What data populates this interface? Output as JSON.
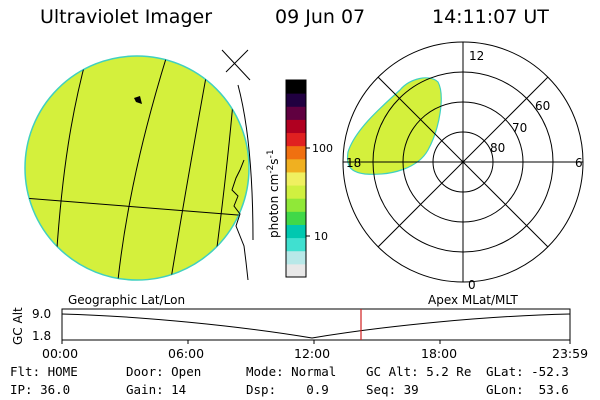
{
  "header": {
    "title": "Ultraviolet Imager",
    "date": "09 Jun 07",
    "time": "14:11:07 UT"
  },
  "colorbar": {
    "unit": "photon cm",
    "exp1": "-2",
    "unit_s": "s",
    "exp2": "-1",
    "tick_100": "100",
    "tick_10": "10",
    "colors": [
      "#e8e8e8",
      "#b8e8e8",
      "#40e0d0",
      "#00c8b0",
      "#40d848",
      "#90e838",
      "#d0f040",
      "#f0f060",
      "#f0b020",
      "#f07010",
      "#e02020",
      "#b00020",
      "#600040",
      "#200040",
      "#000000"
    ]
  },
  "polar_plot": {
    "mlt_labels": {
      "top": "12",
      "left": "18",
      "right": "6",
      "bottom": "0"
    },
    "lat_labels": [
      "60",
      "70",
      "80"
    ]
  },
  "timeline": {
    "left_label": "Geographic Lat/Lon",
    "right_label": "Apex MLat/MLT",
    "yaxis_label": "GC Alt",
    "y_ticks": [
      "9.0",
      "1.8"
    ],
    "x_ticks": [
      "00:00",
      "06:00",
      "12:00",
      "18:00",
      "23:59"
    ]
  },
  "status": {
    "row1": {
      "flt": "Flt: HOME",
      "door": "Door: Open",
      "mode": "Mode: Normal",
      "gc_alt": "GC Alt: 5.2 Re",
      "glat": "GLat: -52.3"
    },
    "row2": {
      "ip": "IP: 36.0",
      "gain": "Gain: 14",
      "dsp": "Dsp:    0.9",
      "seq": "Seq: 39",
      "glon": "GLon:  53.6"
    }
  },
  "image_fill_color": "#d4f03c",
  "timeline_marker_color": "#d02020"
}
